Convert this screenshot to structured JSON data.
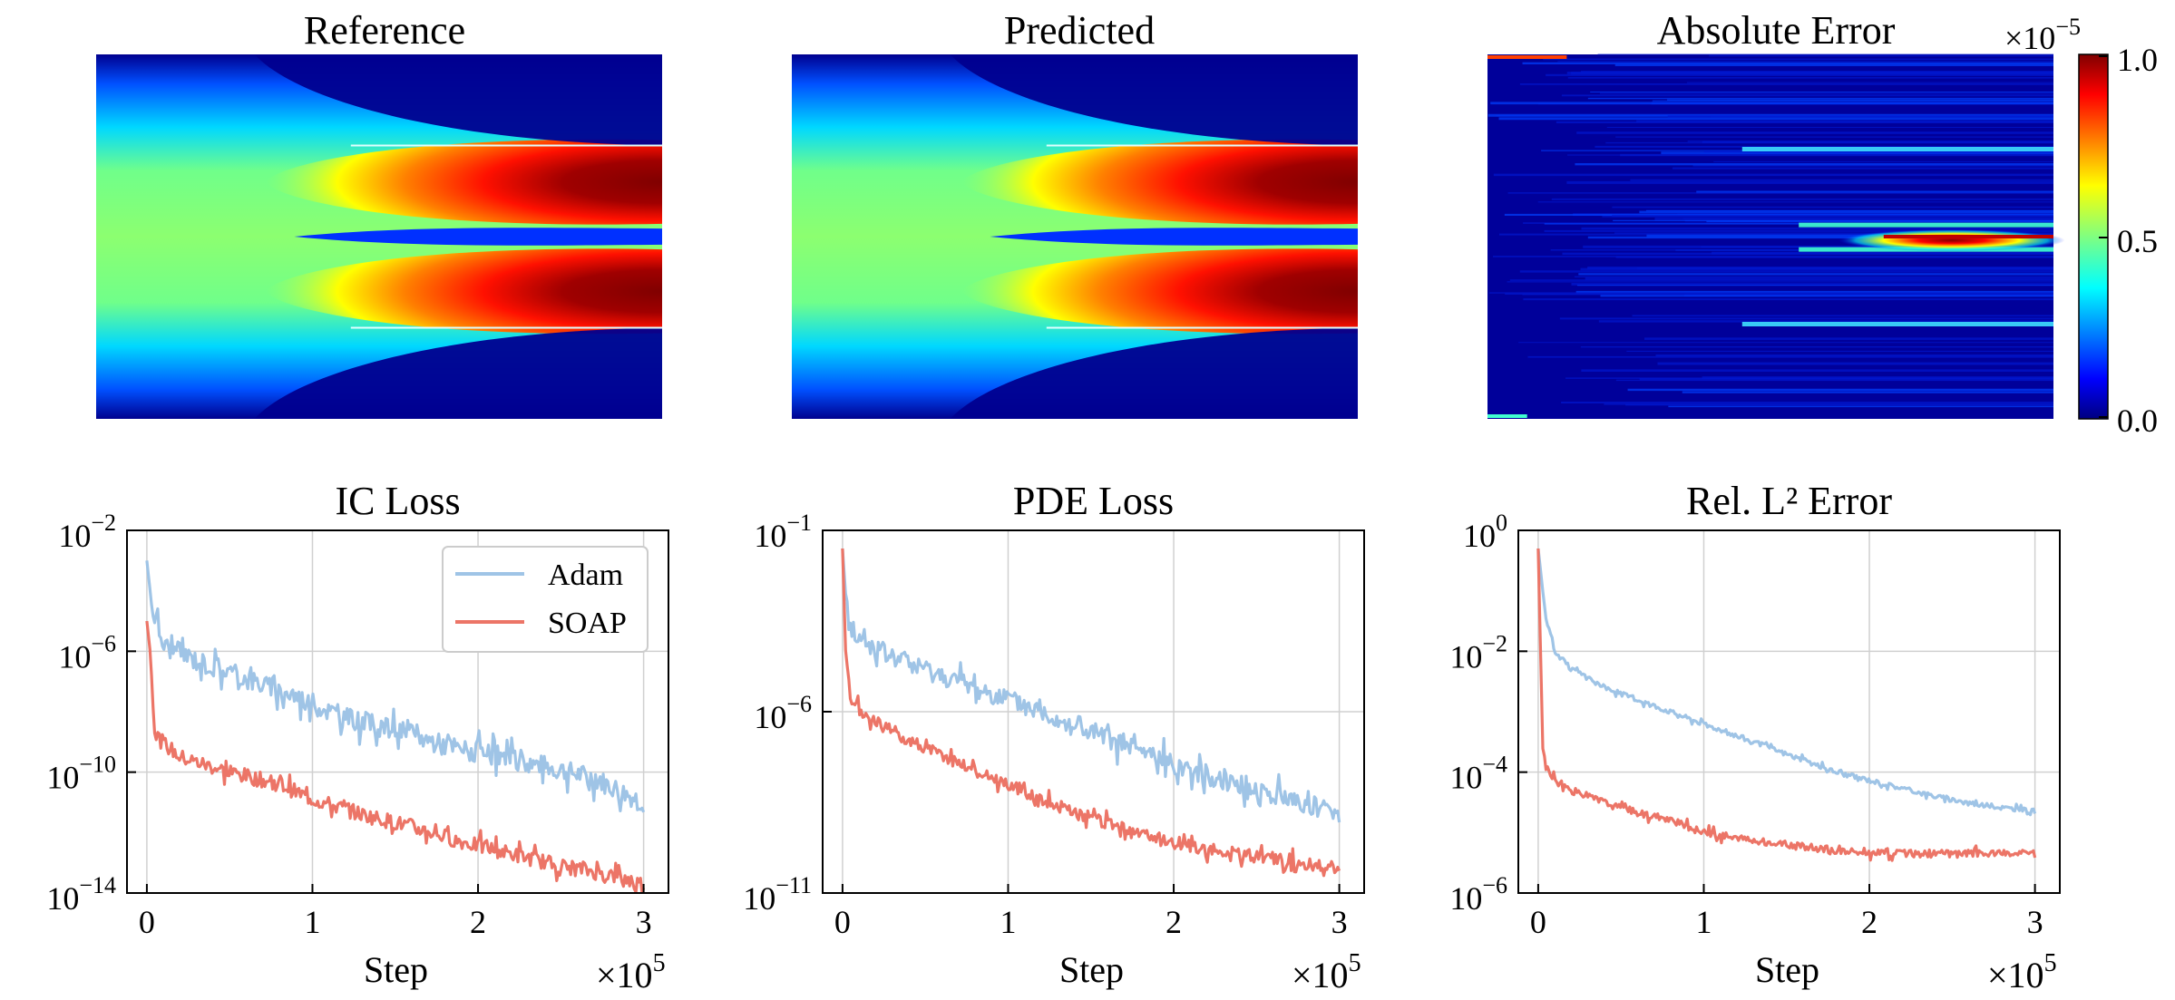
{
  "heatmaps": [
    {
      "title": "Reference",
      "kind": "field"
    },
    {
      "title": "Predicted",
      "kind": "field"
    },
    {
      "title": "Absolute Error",
      "kind": "error"
    }
  ],
  "colorbar": {
    "multiplier_base": "×10",
    "multiplier_exp": "−5",
    "ticks": [
      {
        "value": 1.0,
        "label": "1.0"
      },
      {
        "value": 0.5,
        "label": "0.5"
      },
      {
        "value": 0.0,
        "label": "0.0"
      }
    ],
    "colormap": "jet"
  },
  "xaxis_common": {
    "label": "Step",
    "multiplier_base": "×10",
    "multiplier_exp": "5",
    "ticks": [
      {
        "value": 0,
        "label": "0"
      },
      {
        "value": 1,
        "label": "1"
      },
      {
        "value": 2,
        "label": "2"
      },
      {
        "value": 3,
        "label": "3"
      }
    ]
  },
  "legend": [
    {
      "name": "Adam",
      "color": "#9fc4e6"
    },
    {
      "name": "SOAP",
      "color": "#ec7567"
    }
  ],
  "chart_data": [
    {
      "type": "line",
      "title": "IC Loss",
      "xlabel": "Step",
      "yscale": "log",
      "xlim": [
        -0.12,
        3.15
      ],
      "ylim": [
        -14,
        -2
      ],
      "yticks": [
        {
          "exp": -2,
          "label": "10",
          "sup": "−2"
        },
        {
          "exp": -6,
          "label": "10",
          "sup": "−6"
        },
        {
          "exp": -10,
          "label": "10",
          "sup": "−10"
        },
        {
          "exp": -14,
          "label": "10",
          "sup": "−14"
        }
      ],
      "series": [
        {
          "name": "Adam",
          "color": "#9fc4e6",
          "x": [
            0,
            0.03,
            0.1,
            0.3,
            0.6,
            0.9,
            1.2,
            1.5,
            1.8,
            2.1,
            2.4,
            2.7,
            3.0
          ],
          "logy": [
            -3.0,
            -4.5,
            -5.8,
            -6.3,
            -6.9,
            -7.5,
            -8.2,
            -8.6,
            -9.1,
            -9.5,
            -9.8,
            -10.2,
            -11.0
          ],
          "noise": 0.7
        },
        {
          "name": "SOAP",
          "color": "#ec7567",
          "x": [
            0,
            0.02,
            0.05,
            0.2,
            0.5,
            0.8,
            1.0,
            1.3,
            1.6,
            1.9,
            2.2,
            2.5,
            2.8,
            3.0
          ],
          "logy": [
            -5.0,
            -6.0,
            -8.8,
            -9.5,
            -10.0,
            -10.4,
            -10.9,
            -11.4,
            -11.8,
            -12.3,
            -12.7,
            -13.1,
            -13.4,
            -13.7
          ],
          "noise": 0.5
        }
      ]
    },
    {
      "type": "line",
      "title": "PDE Loss",
      "xlabel": "Step",
      "yscale": "log",
      "xlim": [
        -0.12,
        3.15
      ],
      "ylim": [
        -11,
        -1
      ],
      "yticks": [
        {
          "exp": -1,
          "label": "10",
          "sup": "−1"
        },
        {
          "exp": -6,
          "label": "10",
          "sup": "−6"
        },
        {
          "exp": -11,
          "label": "10",
          "sup": "−11"
        }
      ],
      "series": [
        {
          "name": "Adam",
          "color": "#9fc4e6",
          "x": [
            0,
            0.03,
            0.1,
            0.3,
            0.6,
            0.9,
            1.2,
            1.5,
            1.8,
            2.1,
            2.4,
            2.7,
            3.0
          ],
          "logy": [
            -1.5,
            -3.5,
            -4.0,
            -4.5,
            -5.0,
            -5.5,
            -6.0,
            -6.6,
            -7.1,
            -7.6,
            -8.0,
            -8.4,
            -8.8
          ],
          "noise": 0.55
        },
        {
          "name": "SOAP",
          "color": "#ec7567",
          "x": [
            0,
            0.02,
            0.05,
            0.2,
            0.5,
            0.8,
            1.0,
            1.3,
            1.6,
            1.9,
            2.2,
            2.5,
            2.8,
            3.0
          ],
          "logy": [
            -1.5,
            -4.5,
            -5.8,
            -6.3,
            -7.0,
            -7.6,
            -8.0,
            -8.6,
            -9.1,
            -9.5,
            -9.8,
            -10.0,
            -10.2,
            -10.3
          ],
          "noise": 0.35
        }
      ]
    },
    {
      "type": "line",
      "title": "Rel. L² Error",
      "xlabel": "Step",
      "yscale": "log",
      "xlim": [
        -0.12,
        3.15
      ],
      "ylim": [
        -6,
        0
      ],
      "yticks": [
        {
          "exp": 0,
          "label": "10",
          "sup": "0"
        },
        {
          "exp": -2,
          "label": "10",
          "sup": "−2"
        },
        {
          "exp": -4,
          "label": "10",
          "sup": "−4"
        },
        {
          "exp": -6,
          "label": "10",
          "sup": "−6"
        }
      ],
      "series": [
        {
          "name": "Adam",
          "color": "#9fc4e6",
          "x": [
            0,
            0.02,
            0.05,
            0.1,
            0.2,
            0.4,
            0.6,
            0.9,
            1.2,
            1.5,
            1.8,
            2.1,
            2.4,
            2.7,
            3.0
          ],
          "logy": [
            -0.3,
            -0.8,
            -1.5,
            -2.0,
            -2.3,
            -2.6,
            -2.8,
            -3.1,
            -3.4,
            -3.7,
            -4.0,
            -4.2,
            -4.4,
            -4.55,
            -4.65
          ],
          "noise": 0.08
        },
        {
          "name": "SOAP",
          "color": "#ec7567",
          "x": [
            0,
            0.01,
            0.03,
            0.08,
            0.2,
            0.5,
            0.8,
            1.0,
            1.2,
            1.5,
            1.8,
            2.1,
            2.4,
            2.7,
            3.0
          ],
          "logy": [
            -0.3,
            -1.5,
            -3.8,
            -4.1,
            -4.3,
            -4.6,
            -4.8,
            -5.0,
            -5.1,
            -5.2,
            -5.3,
            -5.35,
            -5.35,
            -5.35,
            -5.35
          ],
          "noise": 0.12
        }
      ]
    }
  ]
}
